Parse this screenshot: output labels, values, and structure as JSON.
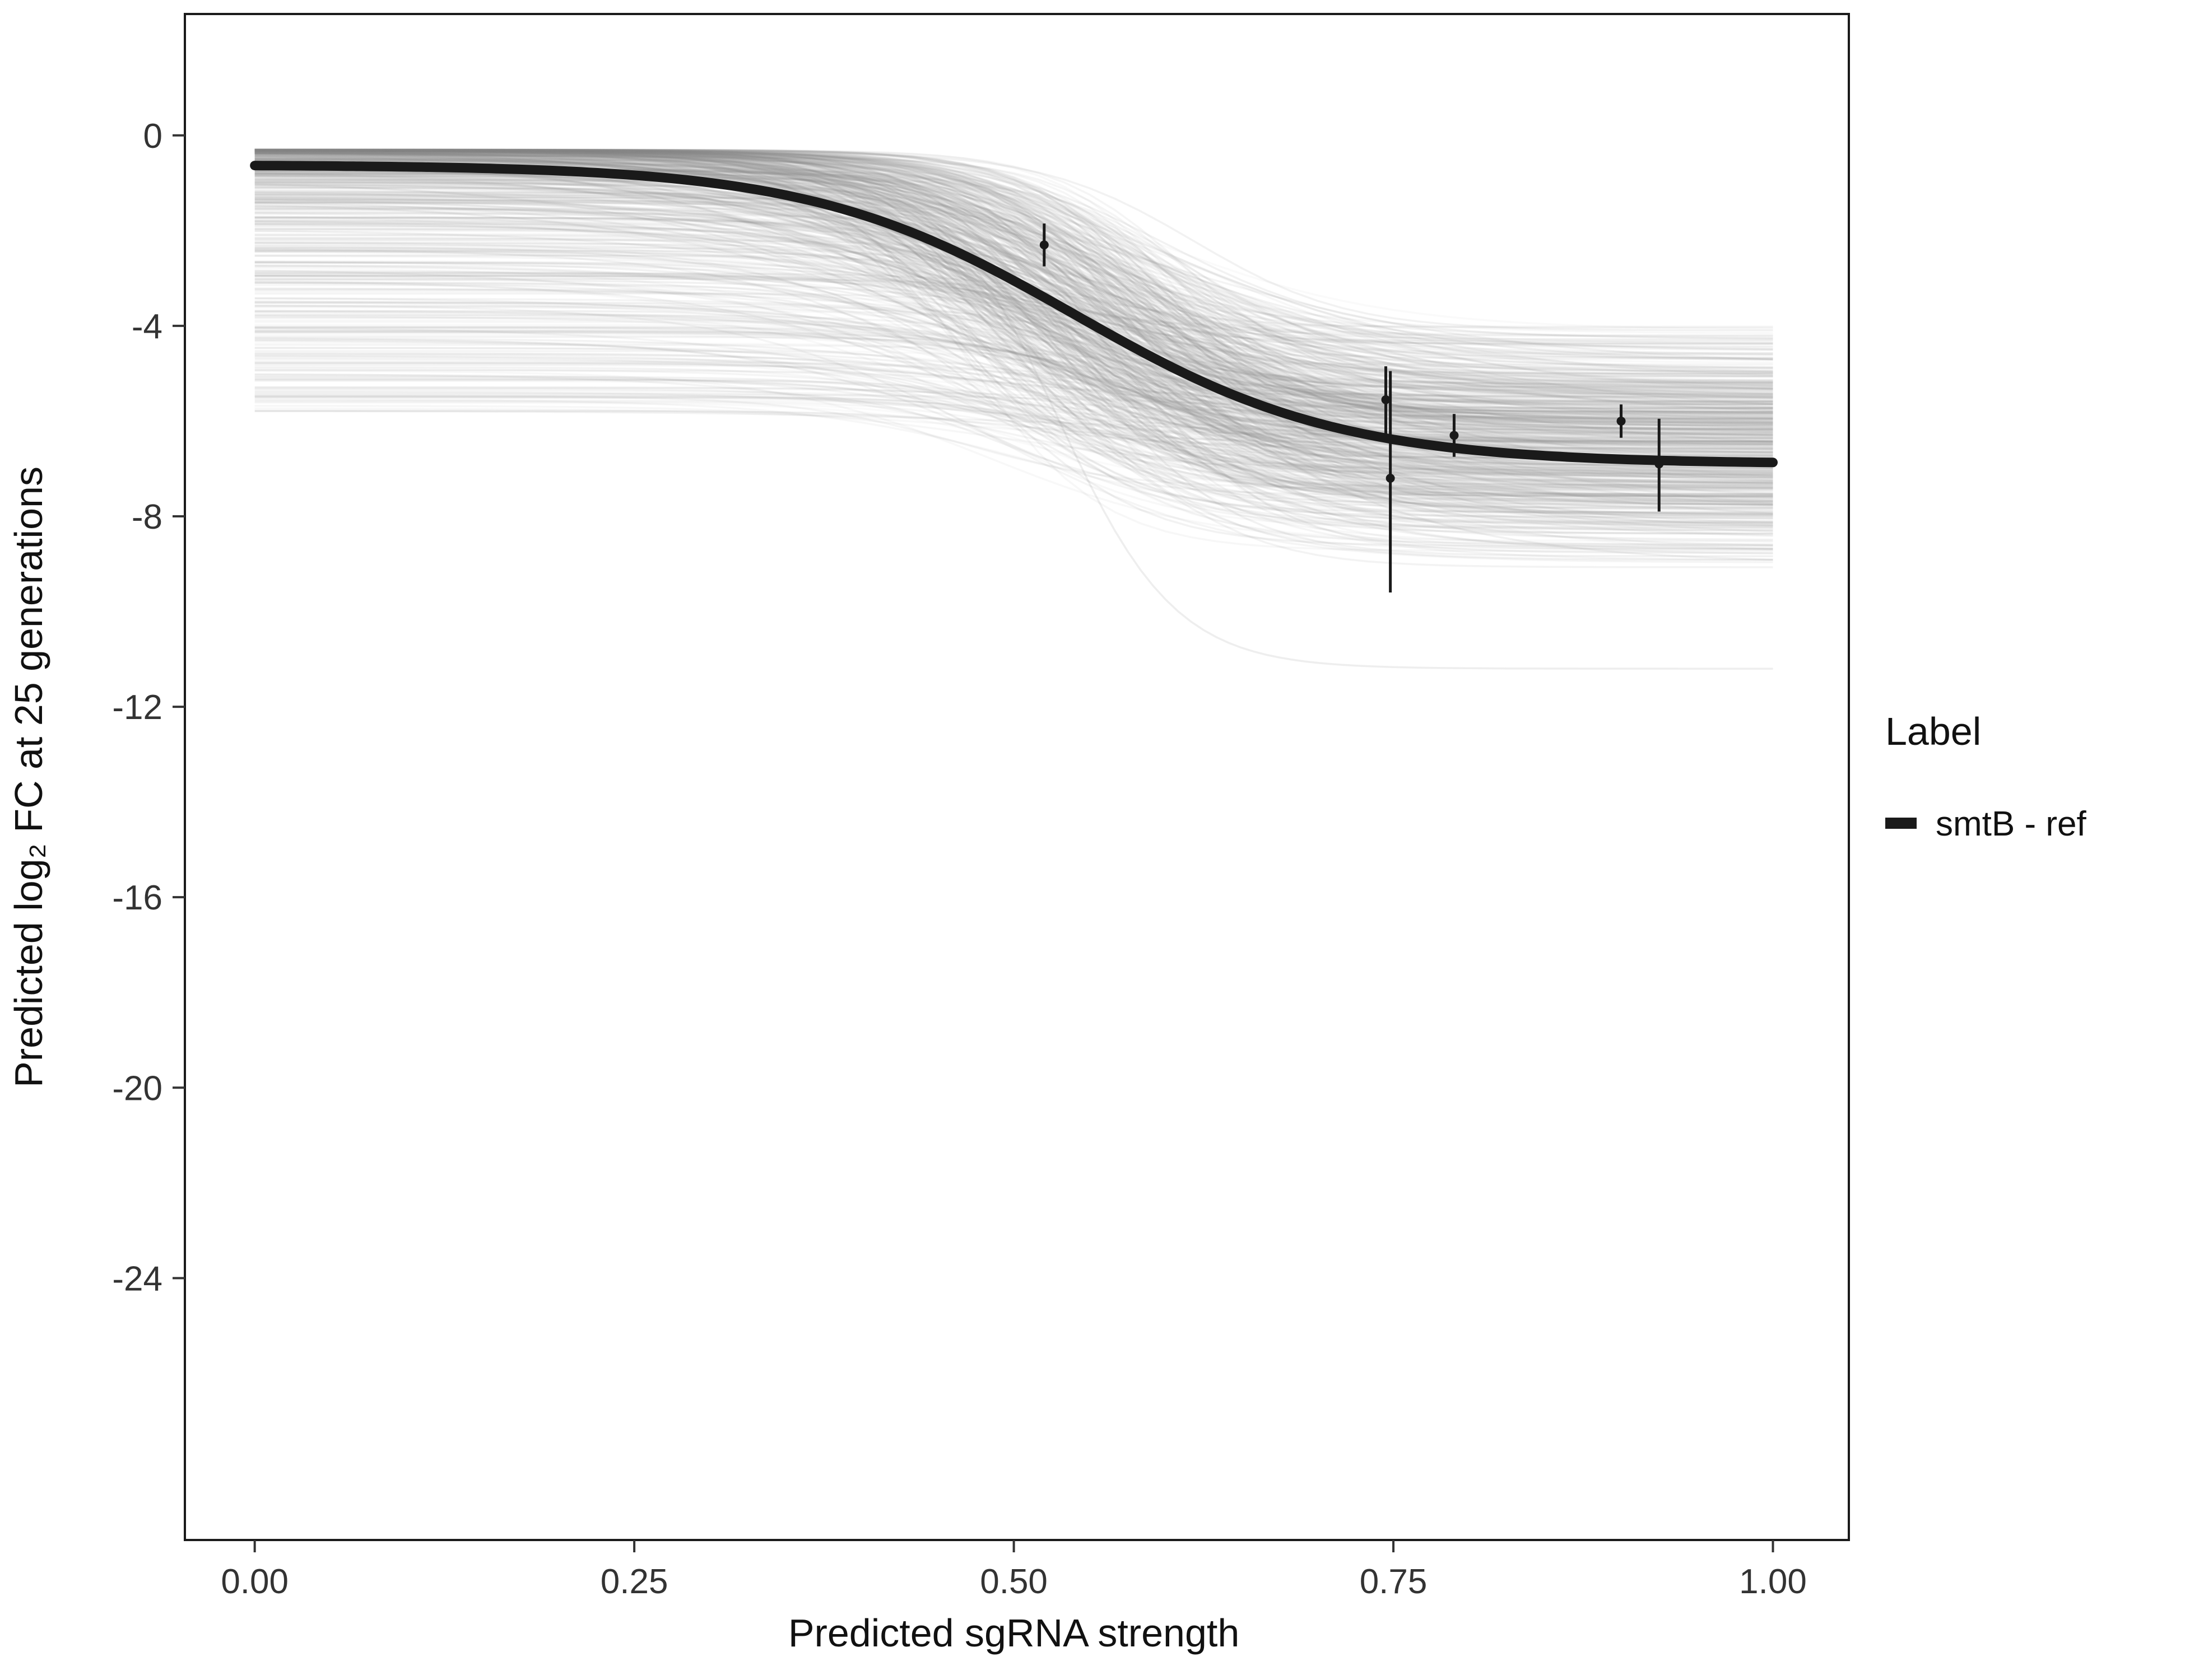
{
  "chart_data": {
    "type": "line",
    "title": "",
    "xlabel": "Predicted sgRNA strength",
    "ylabel": "Predicted  log₂ FC at 25 generations",
    "x_ticks": [
      0.0,
      0.25,
      0.5,
      0.75,
      1.0
    ],
    "x_tick_labels": [
      "0.00",
      "0.25",
      "0.50",
      "0.75",
      "1.00"
    ],
    "y_ticks": [
      0,
      -4,
      -8,
      -12,
      -16,
      -20,
      -24
    ],
    "y_tick_labels": [
      "0",
      "-4",
      "-8",
      "-12",
      "-16",
      "-20",
      "-24"
    ],
    "xlim": [
      -0.046,
      1.05
    ],
    "ylim": [
      -29.5,
      2.55
    ],
    "grid": false,
    "panel_border_color": "#1a1a1a",
    "legend": {
      "title": "Label",
      "position": "right",
      "items": [
        {
          "label": "smtB - ref",
          "color": "#1a1a1a",
          "marker": "thick-line"
        }
      ]
    },
    "series": [
      {
        "name": "smtB - ref",
        "model": "sigmoid",
        "top": -0.62,
        "bottom": -6.9,
        "midpoint": 0.54,
        "steepness": 11.5,
        "color": "#1a1a1a",
        "stroke_width": 17
      }
    ],
    "ensemble": {
      "description": "posterior-sample sigmoid curves (grey spaghetti)",
      "count": 560,
      "color": "#8a8a8a",
      "alpha_range": [
        0.04,
        0.12
      ],
      "top_range": [
        -5.8,
        -0.3
      ],
      "bottom_range": [
        -11.2,
        -3.9
      ],
      "midpoint_range": [
        0.46,
        0.62
      ],
      "steepness_range": [
        8,
        24
      ],
      "outlier": {
        "top": -0.8,
        "bottom": -11.2,
        "midpoint": 0.53,
        "steepness": 26
      }
    },
    "points": [
      {
        "x": 0.52,
        "y": -2.3,
        "ymin": -2.75,
        "ymax": -1.85
      },
      {
        "x": 0.745,
        "y": -5.55,
        "ymin": -6.3,
        "ymax": -4.85
      },
      {
        "x": 0.748,
        "y": -7.2,
        "ymin": -9.6,
        "ymax": -4.95
      },
      {
        "x": 0.79,
        "y": -6.3,
        "ymin": -6.75,
        "ymax": -5.85
      },
      {
        "x": 0.9,
        "y": -6.0,
        "ymin": -6.35,
        "ymax": -5.65
      },
      {
        "x": 0.925,
        "y": -6.9,
        "ymin": -7.9,
        "ymax": -5.95
      }
    ]
  }
}
